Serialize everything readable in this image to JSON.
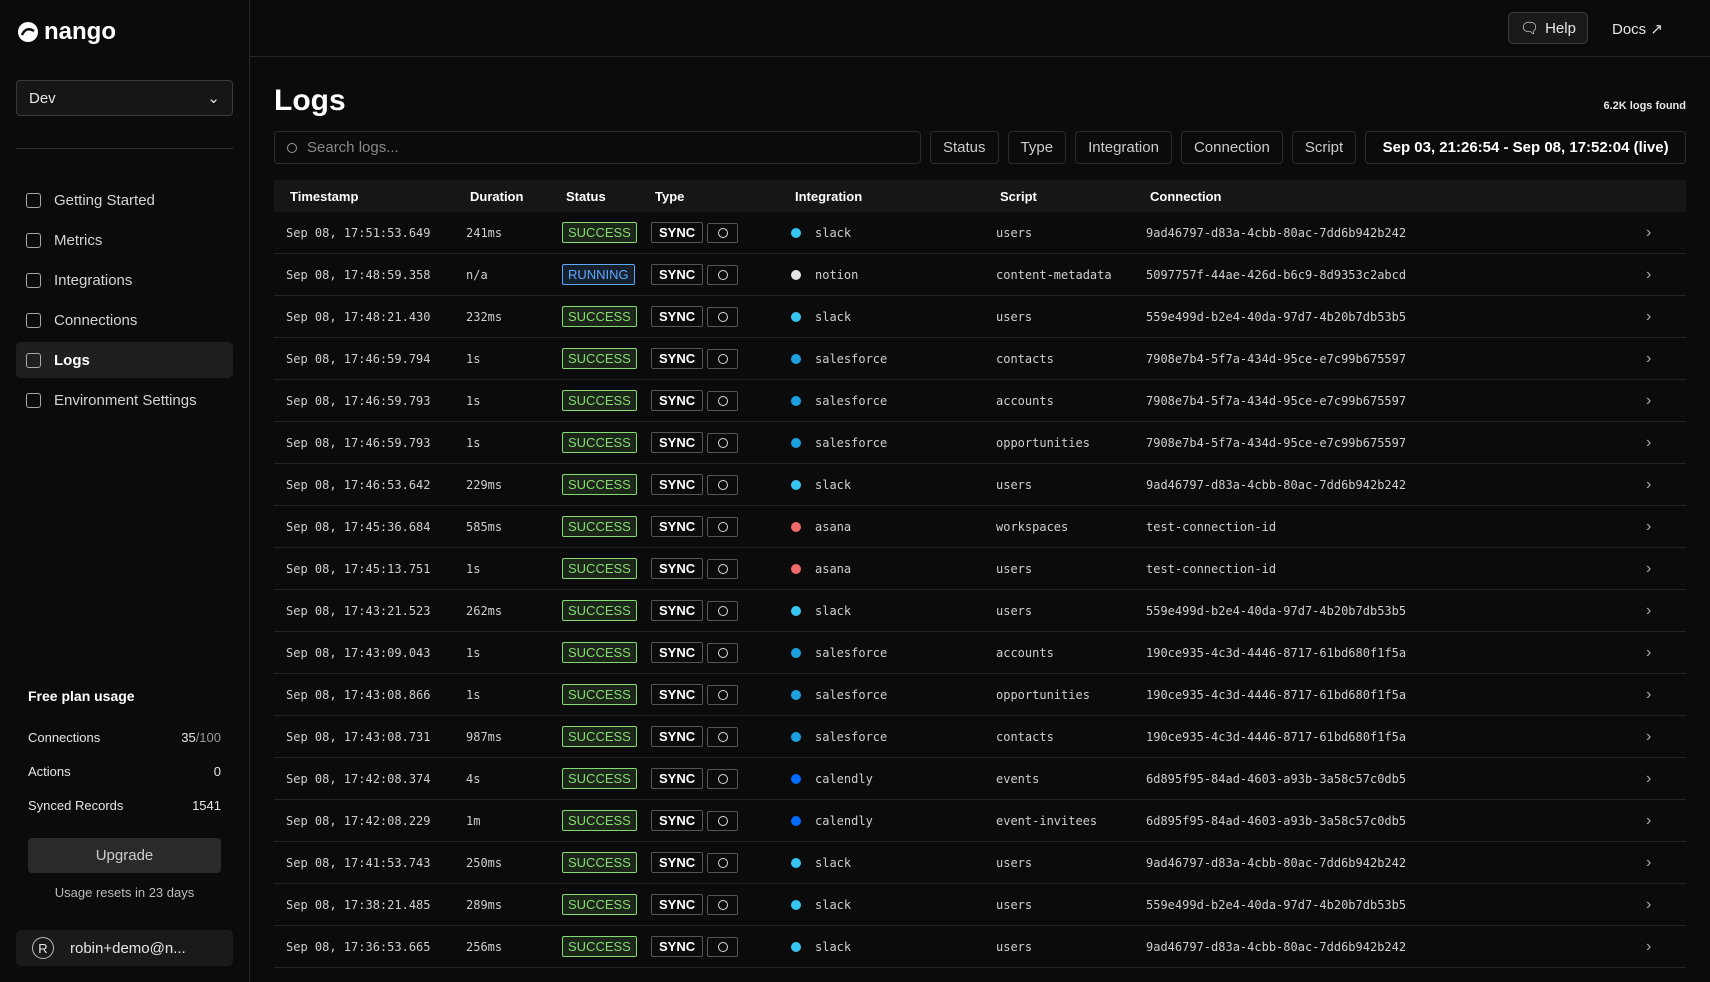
{
  "header": {
    "logo": "nango",
    "help": "Help",
    "docs": "Docs"
  },
  "sidebar": {
    "environment": "Dev",
    "nav": [
      "Getting Started",
      "Metrics",
      "Integrations",
      "Connections",
      "Logs",
      "Environment Settings"
    ],
    "usage": {
      "title": "Free plan usage",
      "connections_label": "Connections",
      "connections_value": "35",
      "connections_limit": "/100",
      "actions_label": "Actions",
      "actions_value": "0",
      "records_label": "Synced Records",
      "records_value": "1541",
      "upgrade": "Upgrade",
      "resets": "Usage resets in 23 days"
    },
    "user": {
      "initial": "R",
      "email": "robin+demo@n..."
    }
  },
  "logs": {
    "title": "Logs",
    "count": "6.2K logs found",
    "search_placeholder": "Search logs...",
    "filters": [
      "Status",
      "Type",
      "Integration",
      "Connection",
      "Script"
    ],
    "date_range": "Sep 03, 21:26:54 - Sep 08, 17:52:04 (live)"
  },
  "table": {
    "columns": [
      "Timestamp",
      "Duration",
      "Status",
      "Type",
      "Integration",
      "Script",
      "Connection"
    ],
    "rows": [
      {
        "timestamp": "Sep 08, 17:51:53.649",
        "duration": "241ms",
        "status": "SUCCESS",
        "status_color": "#86d973",
        "type": "SYNC",
        "integration": "slack",
        "icon_color": "#36c5f0",
        "script": "users",
        "connection": "9ad46797-d83a-4cbb-80ac-7dd6b942b242"
      },
      {
        "timestamp": "Sep 08, 17:48:59.358",
        "duration": "n/a",
        "status": "RUNNING",
        "status_color": "#5ea8ff",
        "type": "SYNC",
        "integration": "notion",
        "icon_color": "#e5e5e5",
        "script": "content-metadata",
        "connection": "5097757f-44ae-426d-b6c9-8d9353c2abcd"
      },
      {
        "timestamp": "Sep 08, 17:48:21.430",
        "duration": "232ms",
        "status": "SUCCESS",
        "status_color": "#86d973",
        "type": "SYNC",
        "integration": "slack",
        "icon_color": "#36c5f0",
        "script": "users",
        "connection": "559e499d-b2e4-40da-97d7-4b20b7db53b5"
      },
      {
        "timestamp": "Sep 08, 17:46:59.794",
        "duration": "1s",
        "status": "SUCCESS",
        "status_color": "#86d973",
        "type": "SYNC",
        "integration": "salesforce",
        "icon_color": "#1ba0e2",
        "script": "contacts",
        "connection": "7908e7b4-5f7a-434d-95ce-e7c99b675597"
      },
      {
        "timestamp": "Sep 08, 17:46:59.793",
        "duration": "1s",
        "status": "SUCCESS",
        "status_color": "#86d973",
        "type": "SYNC",
        "integration": "salesforce",
        "icon_color": "#1ba0e2",
        "script": "accounts",
        "connection": "7908e7b4-5f7a-434d-95ce-e7c99b675597"
      },
      {
        "timestamp": "Sep 08, 17:46:59.793",
        "duration": "1s",
        "status": "SUCCESS",
        "status_color": "#86d973",
        "type": "SYNC",
        "integration": "salesforce",
        "icon_color": "#1ba0e2",
        "script": "opportunities",
        "connection": "7908e7b4-5f7a-434d-95ce-e7c99b675597"
      },
      {
        "timestamp": "Sep 08, 17:46:53.642",
        "duration": "229ms",
        "status": "SUCCESS",
        "status_color": "#86d973",
        "type": "SYNC",
        "integration": "slack",
        "icon_color": "#36c5f0",
        "script": "users",
        "connection": "9ad46797-d83a-4cbb-80ac-7dd6b942b242"
      },
      {
        "timestamp": "Sep 08, 17:45:36.684",
        "duration": "585ms",
        "status": "SUCCESS",
        "status_color": "#86d973",
        "type": "SYNC",
        "integration": "asana",
        "icon_color": "#f06a6a",
        "script": "workspaces",
        "connection": "test-connection-id"
      },
      {
        "timestamp": "Sep 08, 17:45:13.751",
        "duration": "1s",
        "status": "SUCCESS",
        "status_color": "#86d973",
        "type": "SYNC",
        "integration": "asana",
        "icon_color": "#f06a6a",
        "script": "users",
        "connection": "test-connection-id"
      },
      {
        "timestamp": "Sep 08, 17:43:21.523",
        "duration": "262ms",
        "status": "SUCCESS",
        "status_color": "#86d973",
        "type": "SYNC",
        "integration": "slack",
        "icon_color": "#36c5f0",
        "script": "users",
        "connection": "559e499d-b2e4-40da-97d7-4b20b7db53b5"
      },
      {
        "timestamp": "Sep 08, 17:43:09.043",
        "duration": "1s",
        "status": "SUCCESS",
        "status_color": "#86d973",
        "type": "SYNC",
        "integration": "salesforce",
        "icon_color": "#1ba0e2",
        "script": "accounts",
        "connection": "190ce935-4c3d-4446-8717-61bd680f1f5a"
      },
      {
        "timestamp": "Sep 08, 17:43:08.866",
        "duration": "1s",
        "status": "SUCCESS",
        "status_color": "#86d973",
        "type": "SYNC",
        "integration": "salesforce",
        "icon_color": "#1ba0e2",
        "script": "opportunities",
        "connection": "190ce935-4c3d-4446-8717-61bd680f1f5a"
      },
      {
        "timestamp": "Sep 08, 17:43:08.731",
        "duration": "987ms",
        "status": "SUCCESS",
        "status_color": "#86d973",
        "type": "SYNC",
        "integration": "salesforce",
        "icon_color": "#1ba0e2",
        "script": "contacts",
        "connection": "190ce935-4c3d-4446-8717-61bd680f1f5a"
      },
      {
        "timestamp": "Sep 08, 17:42:08.374",
        "duration": "4s",
        "status": "SUCCESS",
        "status_color": "#86d973",
        "type": "SYNC",
        "integration": "calendly",
        "icon_color": "#006bff",
        "script": "events",
        "connection": "6d895f95-84ad-4603-a93b-3a58c57c0db5"
      },
      {
        "timestamp": "Sep 08, 17:42:08.229",
        "duration": "1m",
        "status": "SUCCESS",
        "status_color": "#86d973",
        "type": "SYNC",
        "integration": "calendly",
        "icon_color": "#006bff",
        "script": "event-invitees",
        "connection": "6d895f95-84ad-4603-a93b-3a58c57c0db5"
      },
      {
        "timestamp": "Sep 08, 17:41:53.743",
        "duration": "250ms",
        "status": "SUCCESS",
        "status_color": "#86d973",
        "type": "SYNC",
        "integration": "slack",
        "icon_color": "#36c5f0",
        "script": "users",
        "connection": "9ad46797-d83a-4cbb-80ac-7dd6b942b242"
      },
      {
        "timestamp": "Sep 08, 17:38:21.485",
        "duration": "289ms",
        "status": "SUCCESS",
        "status_color": "#86d973",
        "type": "SYNC",
        "integration": "slack",
        "icon_color": "#36c5f0",
        "script": "users",
        "connection": "559e499d-b2e4-40da-97d7-4b20b7db53b5"
      },
      {
        "timestamp": "Sep 08, 17:36:53.665",
        "duration": "256ms",
        "status": "SUCCESS",
        "status_color": "#86d973",
        "type": "SYNC",
        "integration": "slack",
        "icon_color": "#36c5f0",
        "script": "users",
        "connection": "9ad46797-d83a-4cbb-80ac-7dd6b942b242"
      }
    ]
  }
}
